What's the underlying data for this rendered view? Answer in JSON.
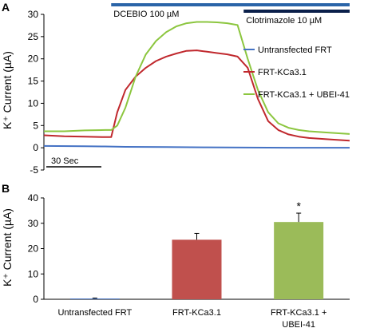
{
  "chart_data": [
    {
      "type": "line",
      "panel_label": "A",
      "ylabel": "K⁺ Current (µA)",
      "ylim": [
        -5,
        30
      ],
      "yticks": [
        -5,
        0,
        5,
        10,
        15,
        20,
        25,
        30
      ],
      "scale_bar": {
        "label": "30 Sec",
        "seconds": 30
      },
      "xlim": [
        0,
        150
      ],
      "treatments": [
        {
          "label": "DCEBIO 100 µM",
          "start": 33,
          "end": 150,
          "color": "#2a64a8"
        },
        {
          "label": "Clotrimazole 10 µM",
          "start": 98,
          "end": 150,
          "color": "#0a1f4a"
        }
      ],
      "legend_position": "right",
      "series": [
        {
          "name": "Untransfected FRT",
          "color": "#4472c4",
          "x": [
            0,
            20,
            30,
            40,
            60,
            80,
            100,
            120,
            140,
            150
          ],
          "values": [
            0.4,
            0.35,
            0.3,
            0.2,
            0.15,
            0.1,
            0.05,
            0.0,
            0.0,
            0.0
          ]
        },
        {
          "name": "FRT-KCa3.1",
          "color": "#c0282d",
          "x": [
            0,
            10,
            20,
            30,
            33,
            36,
            40,
            45,
            50,
            55,
            60,
            65,
            70,
            75,
            80,
            85,
            90,
            95,
            100,
            105,
            110,
            115,
            120,
            125,
            130,
            140,
            150
          ],
          "values": [
            2.8,
            2.6,
            2.5,
            2.4,
            2.4,
            8,
            13,
            16,
            18,
            19.5,
            20.5,
            21.2,
            21.8,
            21.9,
            21.6,
            21.3,
            21.0,
            20.5,
            18,
            11,
            6,
            4,
            3,
            2.5,
            2.2,
            1.9,
            1.6
          ]
        },
        {
          "name": "FRT-KCa3.1 + UBEI-41",
          "color": "#8cc63f",
          "x": [
            0,
            10,
            20,
            30,
            33,
            36,
            40,
            45,
            50,
            55,
            60,
            65,
            70,
            75,
            80,
            85,
            90,
            95,
            100,
            105,
            110,
            115,
            120,
            125,
            130,
            140,
            150
          ],
          "values": [
            3.7,
            3.7,
            3.9,
            4.0,
            4.0,
            5,
            9,
            16,
            21,
            24,
            26,
            27.3,
            28.0,
            28.3,
            28.3,
            28.2,
            28.0,
            27.6,
            20,
            13,
            8,
            5.5,
            4.5,
            4.0,
            3.7,
            3.4,
            3.1
          ]
        }
      ]
    },
    {
      "type": "bar",
      "panel_label": "B",
      "ylabel": "K⁺ Current (µA)",
      "ylim": [
        0,
        40
      ],
      "yticks": [
        0,
        10,
        20,
        30,
        40
      ],
      "categories": [
        [
          "Untransfected FRT"
        ],
        [
          "FRT-KCa3.1"
        ],
        [
          "FRT-KCa3.1 +",
          "UBEI-41"
        ]
      ],
      "values": [
        0.3,
        23.5,
        30.5
      ],
      "errors": [
        0.2,
        2.5,
        3.5
      ],
      "colors": [
        "#4472c4",
        "#c0504d",
        "#9bbb59"
      ],
      "annotations": [
        "",
        "",
        "*"
      ]
    }
  ]
}
